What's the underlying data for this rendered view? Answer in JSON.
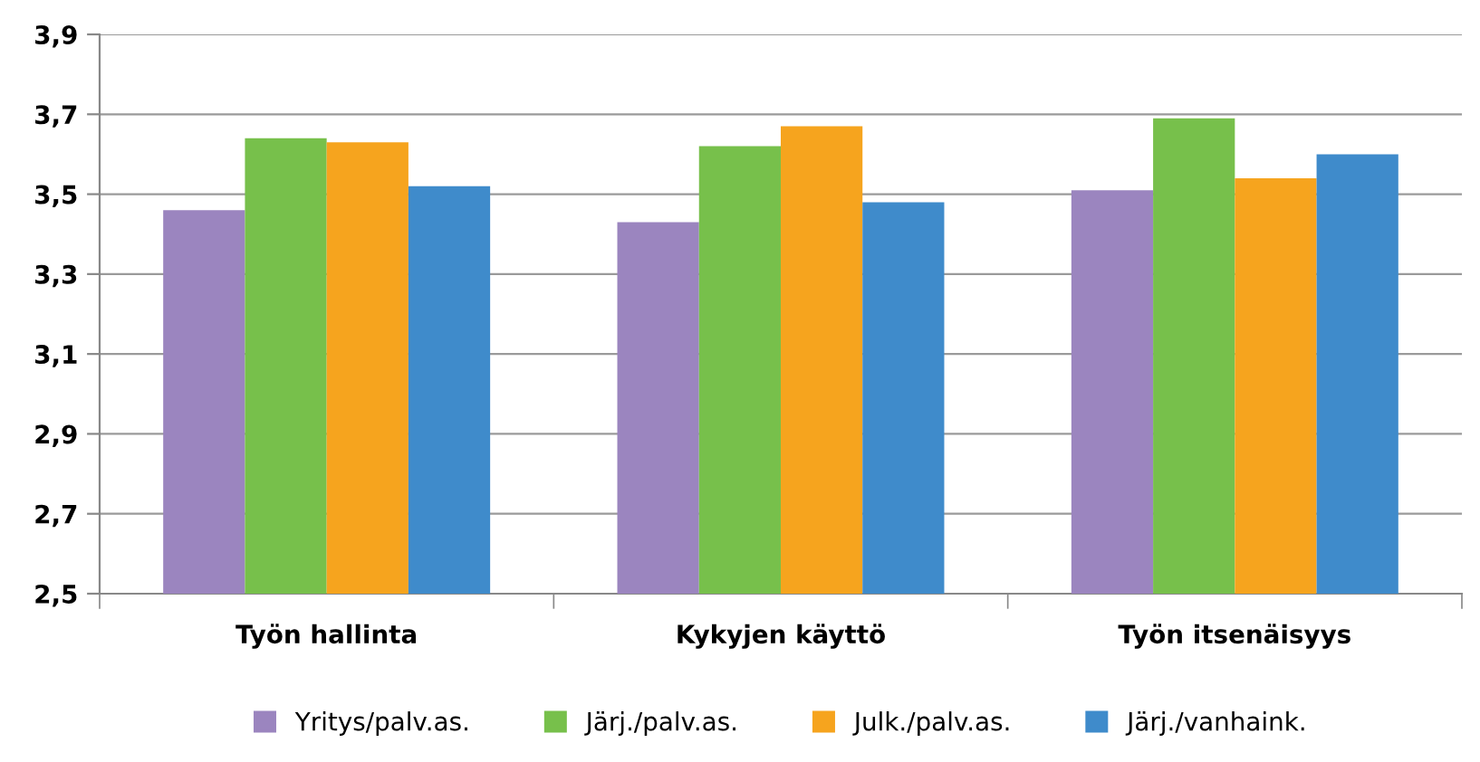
{
  "chart_data": {
    "type": "bar",
    "categories": [
      "Työn hallinta",
      "Kykyjen käyttö",
      "Työn itsenäisyys"
    ],
    "series": [
      {
        "name": "Yritys/palv.as.",
        "color": "#9b85bf",
        "values": [
          3.46,
          3.43,
          3.51
        ]
      },
      {
        "name": "Järj./palv.as.",
        "color": "#77c04b",
        "values": [
          3.64,
          3.62,
          3.69
        ]
      },
      {
        "name": "Julk./palv.as.",
        "color": "#f6a41e",
        "values": [
          3.63,
          3.67,
          3.54
        ]
      },
      {
        "name": "Järj./vanhaink.",
        "color": "#3f8bcb",
        "values": [
          3.52,
          3.48,
          3.6
        ]
      }
    ],
    "ylim": [
      2.5,
      3.9
    ],
    "yticks": [
      {
        "value": 2.5,
        "label": "2,5"
      },
      {
        "value": 2.7,
        "label": "2,7"
      },
      {
        "value": 2.9,
        "label": "2,9"
      },
      {
        "value": 3.1,
        "label": "3,1"
      },
      {
        "value": 3.3,
        "label": "3,3"
      },
      {
        "value": 3.5,
        "label": "3,5"
      },
      {
        "value": 3.7,
        "label": "3,7"
      },
      {
        "value": 3.9,
        "label": "3,9"
      }
    ],
    "grid": "y",
    "legend": "bottom"
  }
}
